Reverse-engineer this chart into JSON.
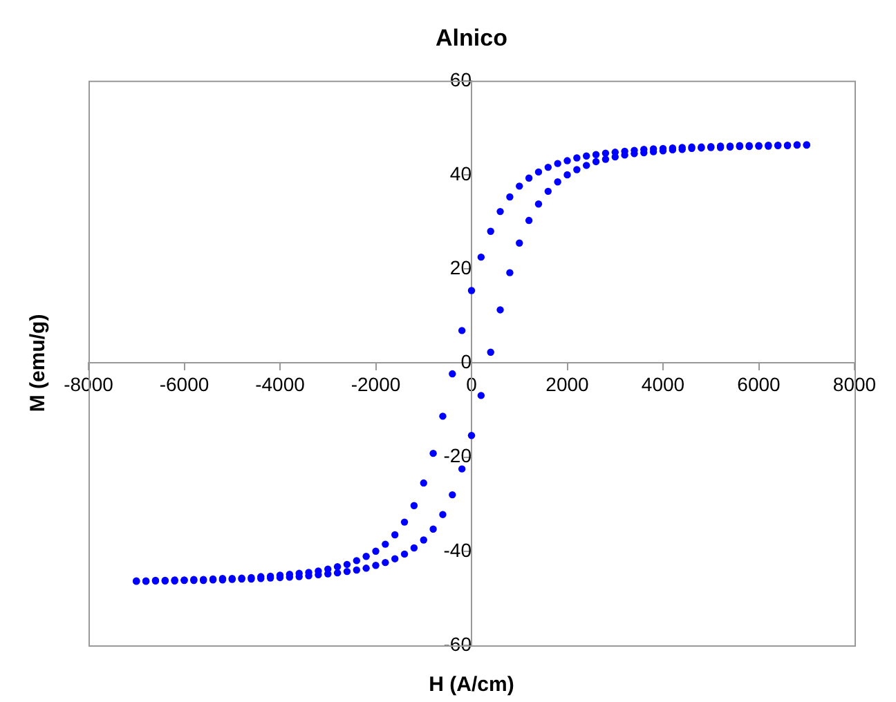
{
  "chart_data": {
    "type": "scatter",
    "title": "Alnico",
    "xlabel": "H (A/cm)",
    "ylabel": "M (emu/g)",
    "xlim": [
      -8000,
      8000
    ],
    "xticks": [
      -8000,
      -6000,
      -4000,
      -2000,
      0,
      2000,
      4000,
      6000,
      8000
    ],
    "ylim": [
      -60,
      60
    ],
    "yticks": [
      -60,
      -40,
      -20,
      0,
      20,
      40,
      60
    ],
    "grid": false,
    "legend": false,
    "marker": "circle",
    "series": [
      {
        "color": "#0000ff",
        "x": [
          7000,
          6800,
          6600,
          6400,
          6200,
          6000,
          5800,
          5600,
          5400,
          5200,
          5000,
          4800,
          4600,
          4400,
          4200,
          4000,
          3800,
          3600,
          3400,
          3200,
          3000,
          2800,
          2600,
          2400,
          2200,
          2000,
          1800,
          1600,
          1400,
          1200,
          1000,
          800,
          600,
          400,
          200,
          0,
          -200,
          -400,
          -600,
          -800,
          -1000,
          -1200,
          -1400,
          -1600,
          -1800,
          -2000,
          -2200,
          -2400,
          -2600,
          -2800,
          -3000,
          -3200,
          -3400,
          -3600,
          -3800,
          -4000,
          -4200,
          -4400,
          -4600,
          -4800,
          -5000,
          -5200,
          -5400,
          -5600,
          -5800,
          -6000,
          -6200,
          -6400,
          -6600,
          -6800,
          -7000
        ],
        "values": [
          46.4,
          46.4,
          46.3,
          46.3,
          46.3,
          46.2,
          46.2,
          46.2,
          46.1,
          46.1,
          46.0,
          45.9,
          45.9,
          45.8,
          45.7,
          45.6,
          45.5,
          45.4,
          45.2,
          45.0,
          44.8,
          44.6,
          44.3,
          44.0,
          43.6,
          43.0,
          42.4,
          41.6,
          40.6,
          39.3,
          37.6,
          35.3,
          32.2,
          28.0,
          22.5,
          15.4,
          6.9,
          -2.3,
          -11.3,
          -19.2,
          -25.5,
          -30.3,
          -33.8,
          -36.5,
          -38.5,
          -40.0,
          -41.1,
          -42.0,
          -42.8,
          -43.3,
          -43.8,
          -44.2,
          -44.5,
          -44.7,
          -44.9,
          -45.1,
          -45.3,
          -45.4,
          -45.6,
          -45.7,
          -45.8,
          -45.8,
          -45.9,
          -46.0,
          -46.0,
          -46.1,
          -46.1,
          -46.2,
          -46.2,
          -46.3,
          -46.3
        ]
      },
      {
        "color": "#0000ff",
        "x": [
          -7000,
          -6800,
          -6600,
          -6400,
          -6200,
          -6000,
          -5800,
          -5600,
          -5400,
          -5200,
          -5000,
          -4800,
          -4600,
          -4400,
          -4200,
          -4000,
          -3800,
          -3600,
          -3400,
          -3200,
          -3000,
          -2800,
          -2600,
          -2400,
          -2200,
          -2000,
          -1800,
          -1600,
          -1400,
          -1200,
          -1000,
          -800,
          -600,
          -400,
          -200,
          0,
          200,
          400,
          600,
          800,
          1000,
          1200,
          1400,
          1600,
          1800,
          2000,
          2200,
          2400,
          2600,
          2800,
          3000,
          3200,
          3400,
          3600,
          3800,
          4000,
          4200,
          4400,
          4600,
          4800,
          5000,
          5200,
          5400,
          5600,
          5800,
          6000,
          6200,
          6400,
          6600,
          6800,
          7000
        ],
        "values": [
          -46.4,
          -46.4,
          -46.3,
          -46.3,
          -46.3,
          -46.2,
          -46.2,
          -46.2,
          -46.1,
          -46.1,
          -46.0,
          -45.9,
          -45.9,
          -45.8,
          -45.7,
          -45.6,
          -45.5,
          -45.4,
          -45.2,
          -45.0,
          -44.8,
          -44.6,
          -44.3,
          -44.0,
          -43.6,
          -43.0,
          -42.4,
          -41.6,
          -40.6,
          -39.3,
          -37.6,
          -35.3,
          -32.2,
          -28.0,
          -22.5,
          -15.4,
          -6.9,
          2.3,
          11.3,
          19.2,
          25.5,
          30.3,
          33.8,
          36.5,
          38.5,
          40.0,
          41.1,
          42.0,
          42.8,
          43.3,
          43.8,
          44.2,
          44.5,
          44.7,
          44.9,
          45.1,
          45.3,
          45.4,
          45.6,
          45.7,
          45.8,
          45.8,
          45.9,
          46.0,
          46.0,
          46.1,
          46.1,
          46.2,
          46.2,
          46.3,
          46.3
        ]
      }
    ]
  }
}
